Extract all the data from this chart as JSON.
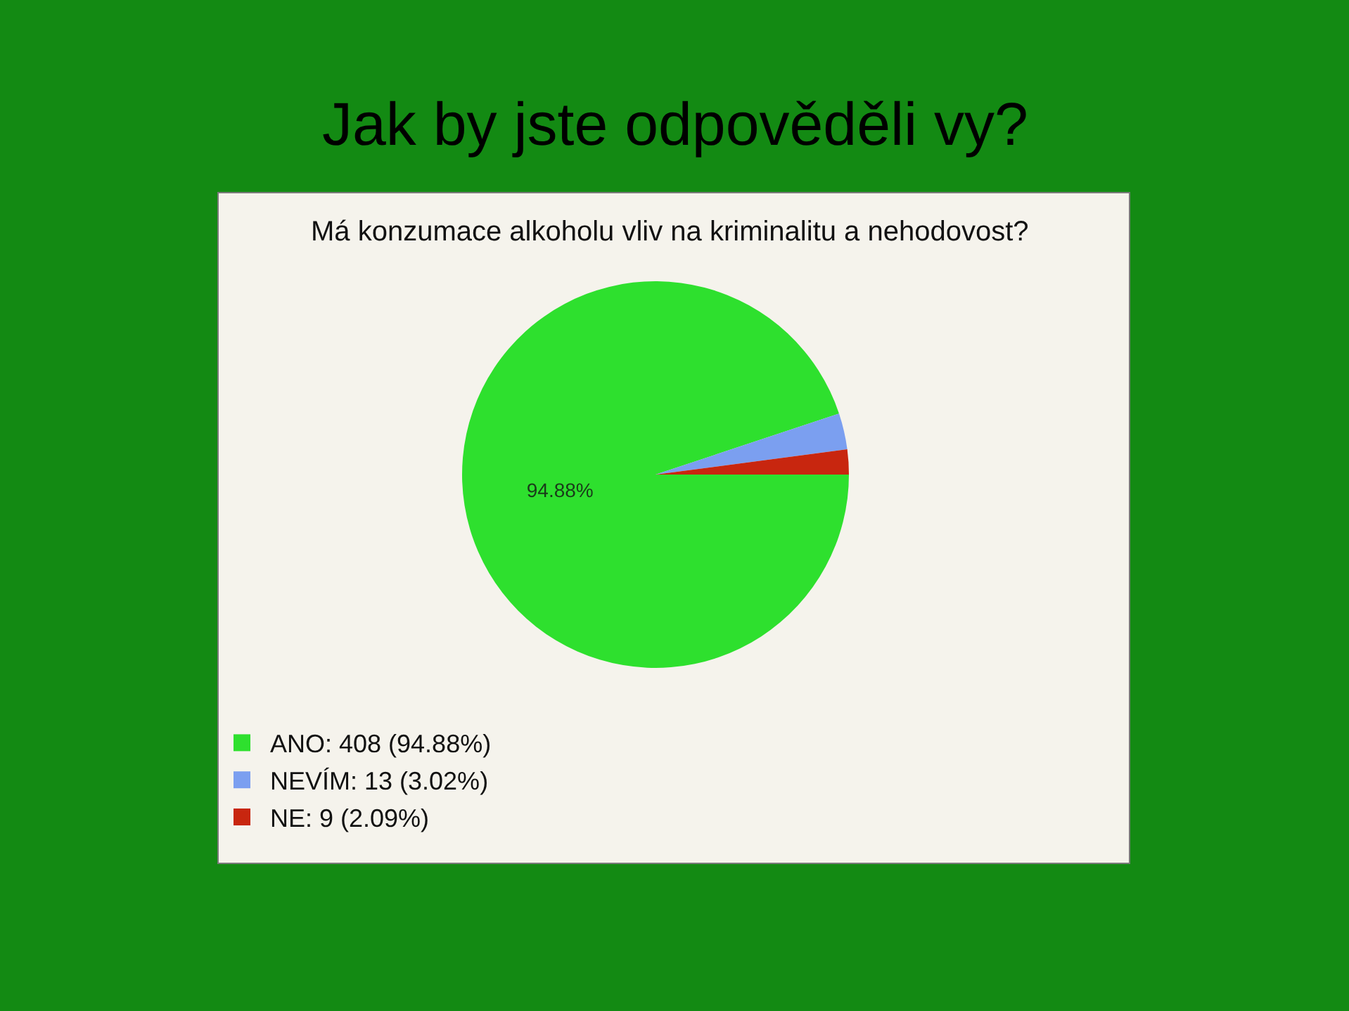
{
  "chart_data": {
    "type": "pie",
    "title": "Jak by jste odpověděli vy?",
    "subtitle": "Má konzumace alkoholu vliv na kriminalitu a nehodovost?",
    "categories": [
      "ANO: 408 (94.88%)",
      "NEVÍM: 13 (3.02%)",
      "NE: 9 (2.09%)"
    ],
    "values": [
      94.88,
      3.02,
      2.09
    ],
    "colors": [
      "#2ee02e",
      "#7b9ff0",
      "#c8260f"
    ],
    "value_labels": [
      "94.88%",
      null,
      null
    ],
    "legend": "bottom left"
  }
}
